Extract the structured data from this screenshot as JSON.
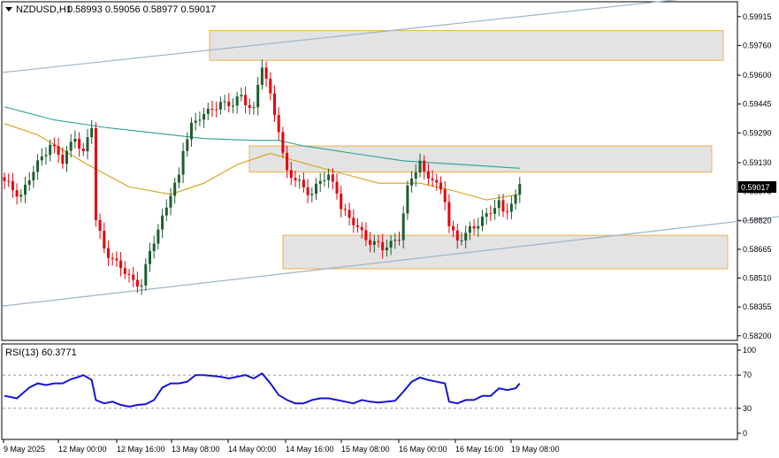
{
  "header": {
    "title": "NZDUSD,H1",
    "ohlc": "0.58993 0.59056 0.58977 0.59017"
  },
  "price_label": "0.59017",
  "rsi": {
    "label": "RSI(13) 60.3771"
  },
  "colors": {
    "bull": "#1f5e2e",
    "bear": "#e8000b",
    "ma_slow": "#2aa198",
    "ma_fast": "#d4a017",
    "rsi_line": "#1515d6",
    "zone_fill": "#e3e3e3",
    "zone_border": "#f0b04a",
    "channel": "#9fb3c8"
  },
  "chart_data": [
    {
      "type": "candlestick",
      "symbol": "NZDUSD",
      "timeframe": "H1",
      "ylim": [
        0.5818,
        0.5999
      ],
      "y_ticks": [
        "0.59915",
        "0.59760",
        "0.59600",
        "0.59445",
        "0.59290",
        "0.59130",
        "0.58975",
        "0.58820",
        "0.58665",
        "0.58510",
        "0.58355",
        "0.58200"
      ],
      "x_ticks": [
        "9 May 2025",
        "12 May 00:00",
        "12 May 16:00",
        "13 May 08:00",
        "14 May 00:00",
        "14 May 16:00",
        "15 May 08:00",
        "16 May 00:00",
        "16 May 16:00",
        "19 May 08:00"
      ],
      "price_path": [
        [
          0,
          0.5902
        ],
        [
          4,
          0.5896
        ],
        [
          8,
          0.5912
        ],
        [
          11,
          0.5924
        ],
        [
          14,
          0.5913
        ],
        [
          17,
          0.5928
        ],
        [
          19,
          0.5918
        ],
        [
          21,
          0.5932
        ],
        [
          22,
          0.5882
        ],
        [
          24,
          0.5868
        ],
        [
          27,
          0.5858
        ],
        [
          29,
          0.5854
        ],
        [
          31,
          0.585
        ],
        [
          33,
          0.5848
        ],
        [
          35,
          0.5864
        ],
        [
          38,
          0.5884
        ],
        [
          40,
          0.5897
        ],
        [
          42,
          0.5904
        ],
        [
          43,
          0.592
        ],
        [
          45,
          0.5934
        ],
        [
          47,
          0.5938
        ],
        [
          49,
          0.5939
        ],
        [
          52,
          0.5946
        ],
        [
          55,
          0.5944
        ],
        [
          57,
          0.5948
        ],
        [
          60,
          0.5942
        ],
        [
          61,
          0.5955
        ],
        [
          62,
          0.5965
        ],
        [
          64,
          0.5948
        ],
        [
          66,
          0.5932
        ],
        [
          67,
          0.5918
        ],
        [
          68,
          0.5908
        ],
        [
          70,
          0.5903
        ],
        [
          72,
          0.59
        ],
        [
          74,
          0.5897
        ],
        [
          76,
          0.5903
        ],
        [
          78,
          0.5905
        ],
        [
          80,
          0.5899
        ],
        [
          81,
          0.589
        ],
        [
          83,
          0.5882
        ],
        [
          85,
          0.5878
        ],
        [
          87,
          0.5873
        ],
        [
          89,
          0.587
        ],
        [
          91,
          0.5866
        ],
        [
          93,
          0.587
        ],
        [
          95,
          0.5874
        ],
        [
          96,
          0.5886
        ],
        [
          97,
          0.5898
        ],
        [
          99,
          0.5909
        ],
        [
          100,
          0.5914
        ],
        [
          101,
          0.5908
        ],
        [
          103,
          0.5905
        ],
        [
          104,
          0.59
        ],
        [
          106,
          0.5893
        ],
        [
          107,
          0.588
        ],
        [
          109,
          0.5872
        ],
        [
          111,
          0.5874
        ],
        [
          113,
          0.5878
        ],
        [
          115,
          0.5884
        ],
        [
          117,
          0.5887
        ],
        [
          119,
          0.589
        ],
        [
          120,
          0.5886
        ],
        [
          121,
          0.5889
        ],
        [
          123,
          0.5895
        ],
        [
          124,
          0.5902
        ]
      ],
      "ma_slow": [
        [
          0,
          0.5943
        ],
        [
          12,
          0.5936
        ],
        [
          24,
          0.5932
        ],
        [
          36,
          0.5929
        ],
        [
          48,
          0.5926
        ],
        [
          60,
          0.5925
        ],
        [
          66,
          0.5925
        ],
        [
          72,
          0.5922
        ],
        [
          84,
          0.5918
        ],
        [
          96,
          0.5914
        ],
        [
          110,
          0.5912
        ],
        [
          124,
          0.591
        ]
      ],
      "ma_fast": [
        [
          0,
          0.5934
        ],
        [
          8,
          0.5928
        ],
        [
          20,
          0.5912
        ],
        [
          30,
          0.59
        ],
        [
          40,
          0.5896
        ],
        [
          48,
          0.5902
        ],
        [
          56,
          0.5912
        ],
        [
          64,
          0.5918
        ],
        [
          70,
          0.5914
        ],
        [
          80,
          0.5908
        ],
        [
          90,
          0.5902
        ],
        [
          100,
          0.5902
        ],
        [
          108,
          0.5898
        ],
        [
          116,
          0.5893
        ],
        [
          124,
          0.5896
        ]
      ],
      "zones": [
        {
          "top": 0.5984,
          "bottom": 0.5968
        },
        {
          "top": 0.5922,
          "bottom": 0.5908
        },
        {
          "top": 0.5874,
          "bottom": 0.5856
        }
      ],
      "channel_lines": [
        {
          "x1": 0,
          "y1": 0.59615,
          "x2": 182,
          "y2": 0.60065
        },
        {
          "x1": 0,
          "y1": 0.5836,
          "x2": 182,
          "y2": 0.5884
        }
      ]
    },
    {
      "type": "line",
      "name": "RSI(13)",
      "ylim": [
        0,
        100
      ],
      "y_ticks": [
        100,
        70,
        30,
        0
      ],
      "levels": [
        70,
        30
      ],
      "values": [
        [
          0,
          45
        ],
        [
          3,
          42
        ],
        [
          6,
          55
        ],
        [
          8,
          60
        ],
        [
          10,
          58
        ],
        [
          12,
          60
        ],
        [
          14,
          60
        ],
        [
          16,
          65
        ],
        [
          18,
          68
        ],
        [
          19,
          70
        ],
        [
          21,
          64
        ],
        [
          22,
          40
        ],
        [
          24,
          36
        ],
        [
          26,
          38
        ],
        [
          28,
          34
        ],
        [
          30,
          32
        ],
        [
          32,
          34
        ],
        [
          34,
          35
        ],
        [
          36,
          40
        ],
        [
          38,
          55
        ],
        [
          40,
          60
        ],
        [
          42,
          60
        ],
        [
          44,
          62
        ],
        [
          46,
          70
        ],
        [
          48,
          70
        ],
        [
          50,
          69
        ],
        [
          52,
          68
        ],
        [
          54,
          66
        ],
        [
          56,
          68
        ],
        [
          58,
          70
        ],
        [
          60,
          66
        ],
        [
          62,
          72
        ],
        [
          64,
          60
        ],
        [
          66,
          46
        ],
        [
          68,
          40
        ],
        [
          70,
          36
        ],
        [
          72,
          36
        ],
        [
          74,
          40
        ],
        [
          76,
          42
        ],
        [
          78,
          42
        ],
        [
          80,
          40
        ],
        [
          82,
          38
        ],
        [
          84,
          36
        ],
        [
          86,
          40
        ],
        [
          88,
          38
        ],
        [
          90,
          37
        ],
        [
          92,
          38
        ],
        [
          94,
          39
        ],
        [
          96,
          50
        ],
        [
          98,
          62
        ],
        [
          100,
          67
        ],
        [
          102,
          64
        ],
        [
          104,
          62
        ],
        [
          106,
          60
        ],
        [
          107,
          38
        ],
        [
          109,
          36
        ],
        [
          111,
          40
        ],
        [
          113,
          40
        ],
        [
          115,
          45
        ],
        [
          117,
          45
        ],
        [
          119,
          54
        ],
        [
          121,
          52
        ],
        [
          123,
          54
        ],
        [
          124,
          60
        ]
      ]
    }
  ]
}
